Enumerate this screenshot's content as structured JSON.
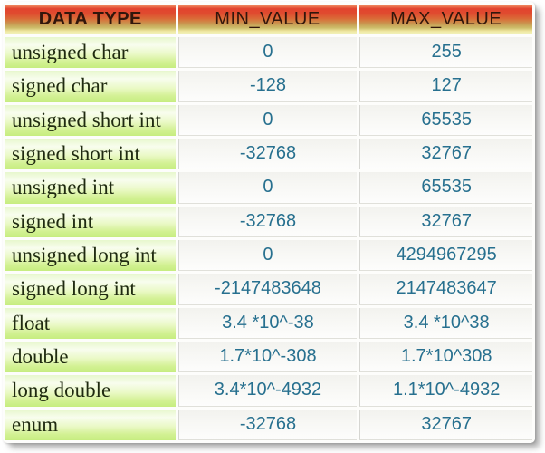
{
  "title": "C data type ranges table",
  "colors": {
    "header_red": "#e2432e",
    "header_yellow_edge": "#f1f0b6",
    "type_cell_green": "#c6ed7f",
    "value_text_teal": "#27708f",
    "header_text": "#32160b",
    "type_text": "#1f2a10"
  },
  "chart_data": {
    "type": "table",
    "title": "",
    "columns": [
      "DATA TYPE",
      "MIN_VALUE",
      "MAX_VALUE"
    ],
    "rows": [
      {
        "type": "unsigned char",
        "min": "0",
        "max": "255"
      },
      {
        "type": "signed char",
        "min": "-128",
        "max": "127"
      },
      {
        "type": "unsigned short int",
        "min": "0",
        "max": "65535"
      },
      {
        "type": "signed short int",
        "min": "-32768",
        "max": "32767"
      },
      {
        "type": "unsigned int",
        "min": "0",
        "max": "65535"
      },
      {
        "type": "signed int",
        "min": "-32768",
        "max": "32767"
      },
      {
        "type": "unsigned long int",
        "min": "0",
        "max": "4294967295"
      },
      {
        "type": "signed long int",
        "min": "-2147483648",
        "max": "2147483647"
      },
      {
        "type": "float",
        "min": "3.4 *10^-38",
        "max": "3.4 *10^38"
      },
      {
        "type": "double",
        "min": "1.7*10^-308",
        "max": "1.7*10^308"
      },
      {
        "type": "long double",
        "min": "3.4*10^-4932",
        "max": "1.1*10^-4932"
      },
      {
        "type": "enum",
        "min": "-32768",
        "max": "32767"
      }
    ]
  }
}
